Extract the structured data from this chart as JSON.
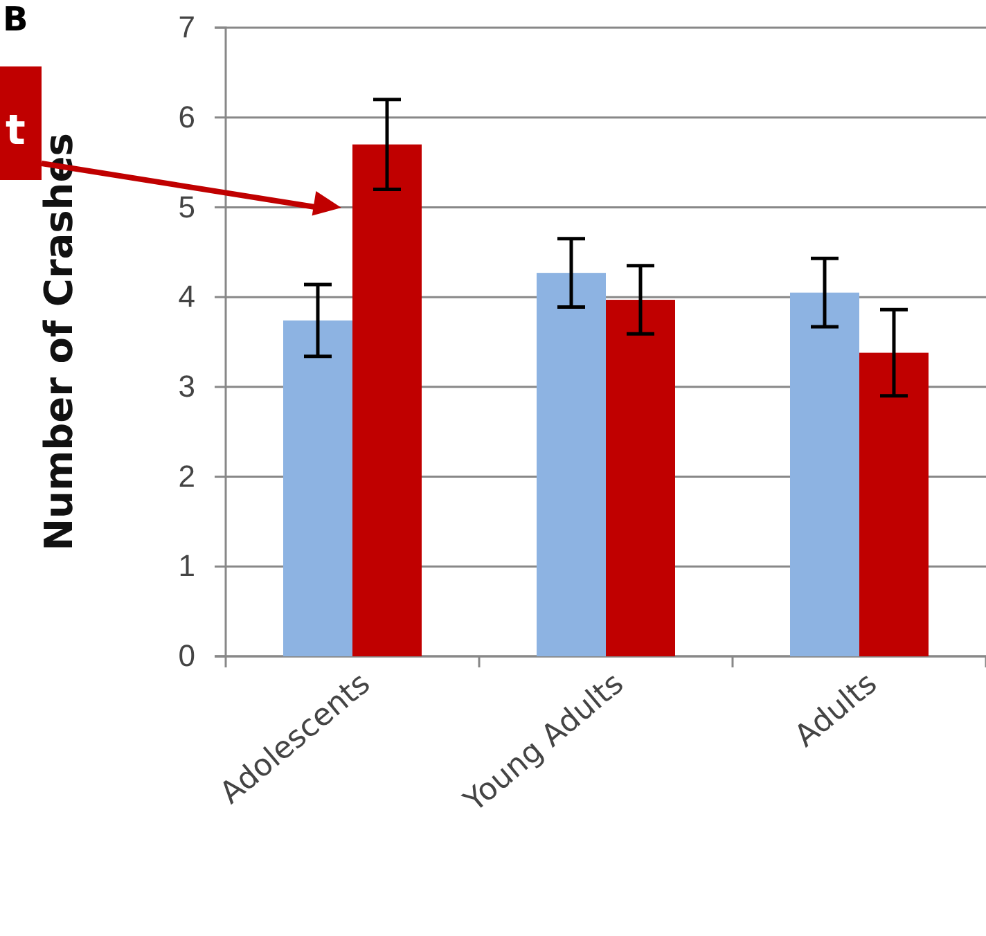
{
  "chart_data": {
    "type": "bar",
    "ylabel": "Number of Crashes",
    "categories": [
      "Adolescents",
      "Young Adults",
      "Adults"
    ],
    "series": [
      {
        "color": "#8db3e2",
        "values": [
          3.74,
          4.27,
          4.05
        ],
        "errors": [
          0.4,
          0.38,
          0.38
        ]
      },
      {
        "color": "#c00000",
        "values": [
          5.7,
          3.97,
          3.38
        ],
        "errors": [
          0.5,
          0.38,
          0.48
        ]
      }
    ],
    "ylim": [
      0,
      7
    ],
    "yticks": [
      0,
      1,
      2,
      3,
      4,
      5,
      6,
      7
    ],
    "grid": "y",
    "annotations": [
      "B",
      "t"
    ]
  }
}
